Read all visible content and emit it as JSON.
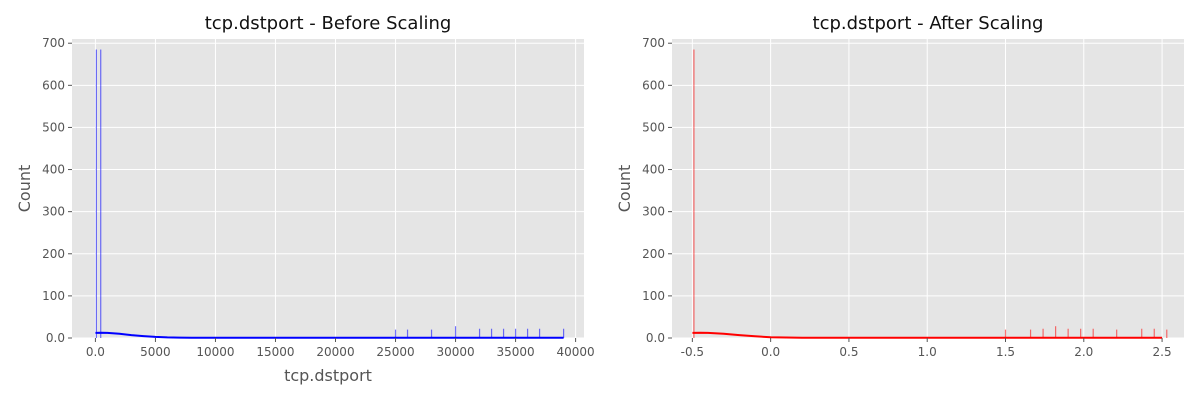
{
  "chart_data": [
    {
      "type": "histogram",
      "title": "tcp.dstport - Before Scaling",
      "xlabel": "tcp.dstport",
      "ylabel": "Count",
      "xlim": [
        -1950,
        40700
      ],
      "ylim": [
        0,
        710
      ],
      "xticks": [
        0,
        5000,
        10000,
        15000,
        20000,
        25000,
        30000,
        35000,
        40000
      ],
      "yticks": [
        0,
        100,
        200,
        300,
        400,
        500,
        600,
        700
      ],
      "grid": true,
      "color": "#0000ff",
      "bars": [
        {
          "x": 80,
          "count": 685
        },
        {
          "x": 443,
          "count": 685
        },
        {
          "x": 25000,
          "count": 20
        },
        {
          "x": 26000,
          "count": 20
        },
        {
          "x": 28000,
          "count": 20
        },
        {
          "x": 30000,
          "count": 28
        },
        {
          "x": 32000,
          "count": 22
        },
        {
          "x": 33000,
          "count": 22
        },
        {
          "x": 34000,
          "count": 22
        },
        {
          "x": 35000,
          "count": 22
        },
        {
          "x": 36000,
          "count": 22
        },
        {
          "x": 37000,
          "count": 22
        },
        {
          "x": 39000,
          "count": 22
        }
      ],
      "kde": {
        "x": [
          0,
          500,
          1000,
          2000,
          3000,
          4000,
          5000,
          6000,
          7000,
          8000,
          10000,
          20000,
          30000,
          39000
        ],
        "y": [
          12,
          12.5,
          12,
          10,
          7,
          4.5,
          2.5,
          1.5,
          1,
          0.7,
          0.6,
          0.5,
          0.6,
          0.7
        ]
      }
    },
    {
      "type": "histogram",
      "title": "tcp.dstport - After Scaling",
      "xlabel": "",
      "ylabel": "Count",
      "xlim": [
        -0.63,
        2.64
      ],
      "ylim": [
        0,
        710
      ],
      "xticks": [
        -0.5,
        0.0,
        0.5,
        1.0,
        1.5,
        2.0,
        2.5
      ],
      "yticks": [
        0,
        100,
        200,
        300,
        400,
        500,
        600,
        700
      ],
      "grid": true,
      "color": "#ff0000",
      "bars": [
        {
          "x": -0.49,
          "count": 685
        },
        {
          "x": 1.5,
          "count": 20
        },
        {
          "x": 1.66,
          "count": 20
        },
        {
          "x": 1.74,
          "count": 22
        },
        {
          "x": 1.82,
          "count": 28
        },
        {
          "x": 1.9,
          "count": 22
        },
        {
          "x": 1.98,
          "count": 22
        },
        {
          "x": 2.06,
          "count": 22
        },
        {
          "x": 2.21,
          "count": 20
        },
        {
          "x": 2.37,
          "count": 22
        },
        {
          "x": 2.45,
          "count": 22
        },
        {
          "x": 2.53,
          "count": 20
        }
      ],
      "kde": {
        "x": [
          -0.5,
          -0.45,
          -0.4,
          -0.3,
          -0.2,
          -0.1,
          0.0,
          0.1,
          0.2,
          0.5,
          1.0,
          1.5,
          2.0,
          2.5
        ],
        "y": [
          12,
          12.5,
          12,
          10,
          7,
          4,
          2,
          1.2,
          0.8,
          0.5,
          0.4,
          0.4,
          0.4,
          0.4
        ]
      }
    }
  ]
}
